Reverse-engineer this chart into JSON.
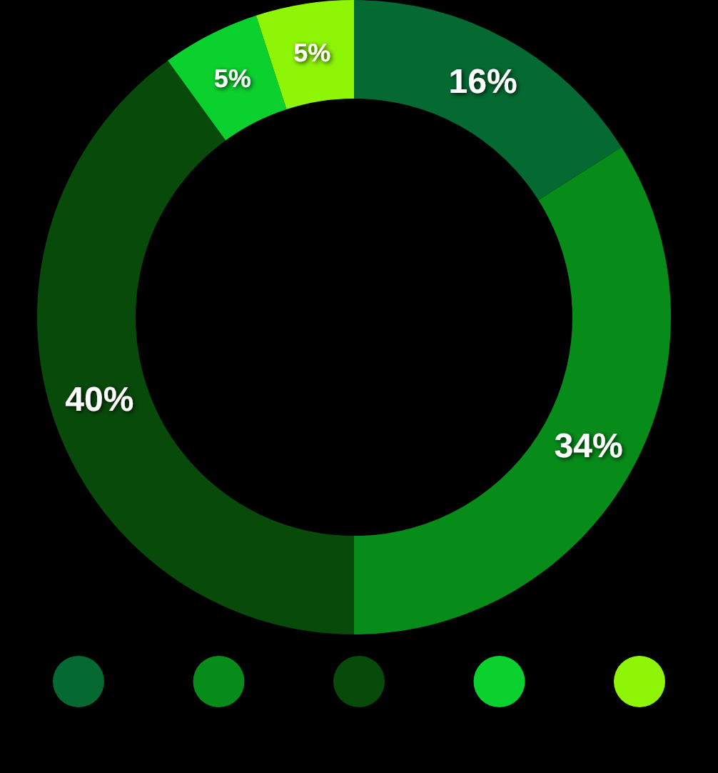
{
  "chart_data": {
    "type": "donut",
    "categories": [
      null,
      null,
      null,
      null,
      null
    ],
    "values": [
      16,
      34,
      40,
      5,
      5
    ],
    "colors": [
      "#046a32",
      "#078c1a",
      "#074a0a",
      "#0bd12e",
      "#8ef507"
    ],
    "value_labels": [
      "16%",
      "34%",
      "40%",
      "5%",
      "5%"
    ]
  }
}
